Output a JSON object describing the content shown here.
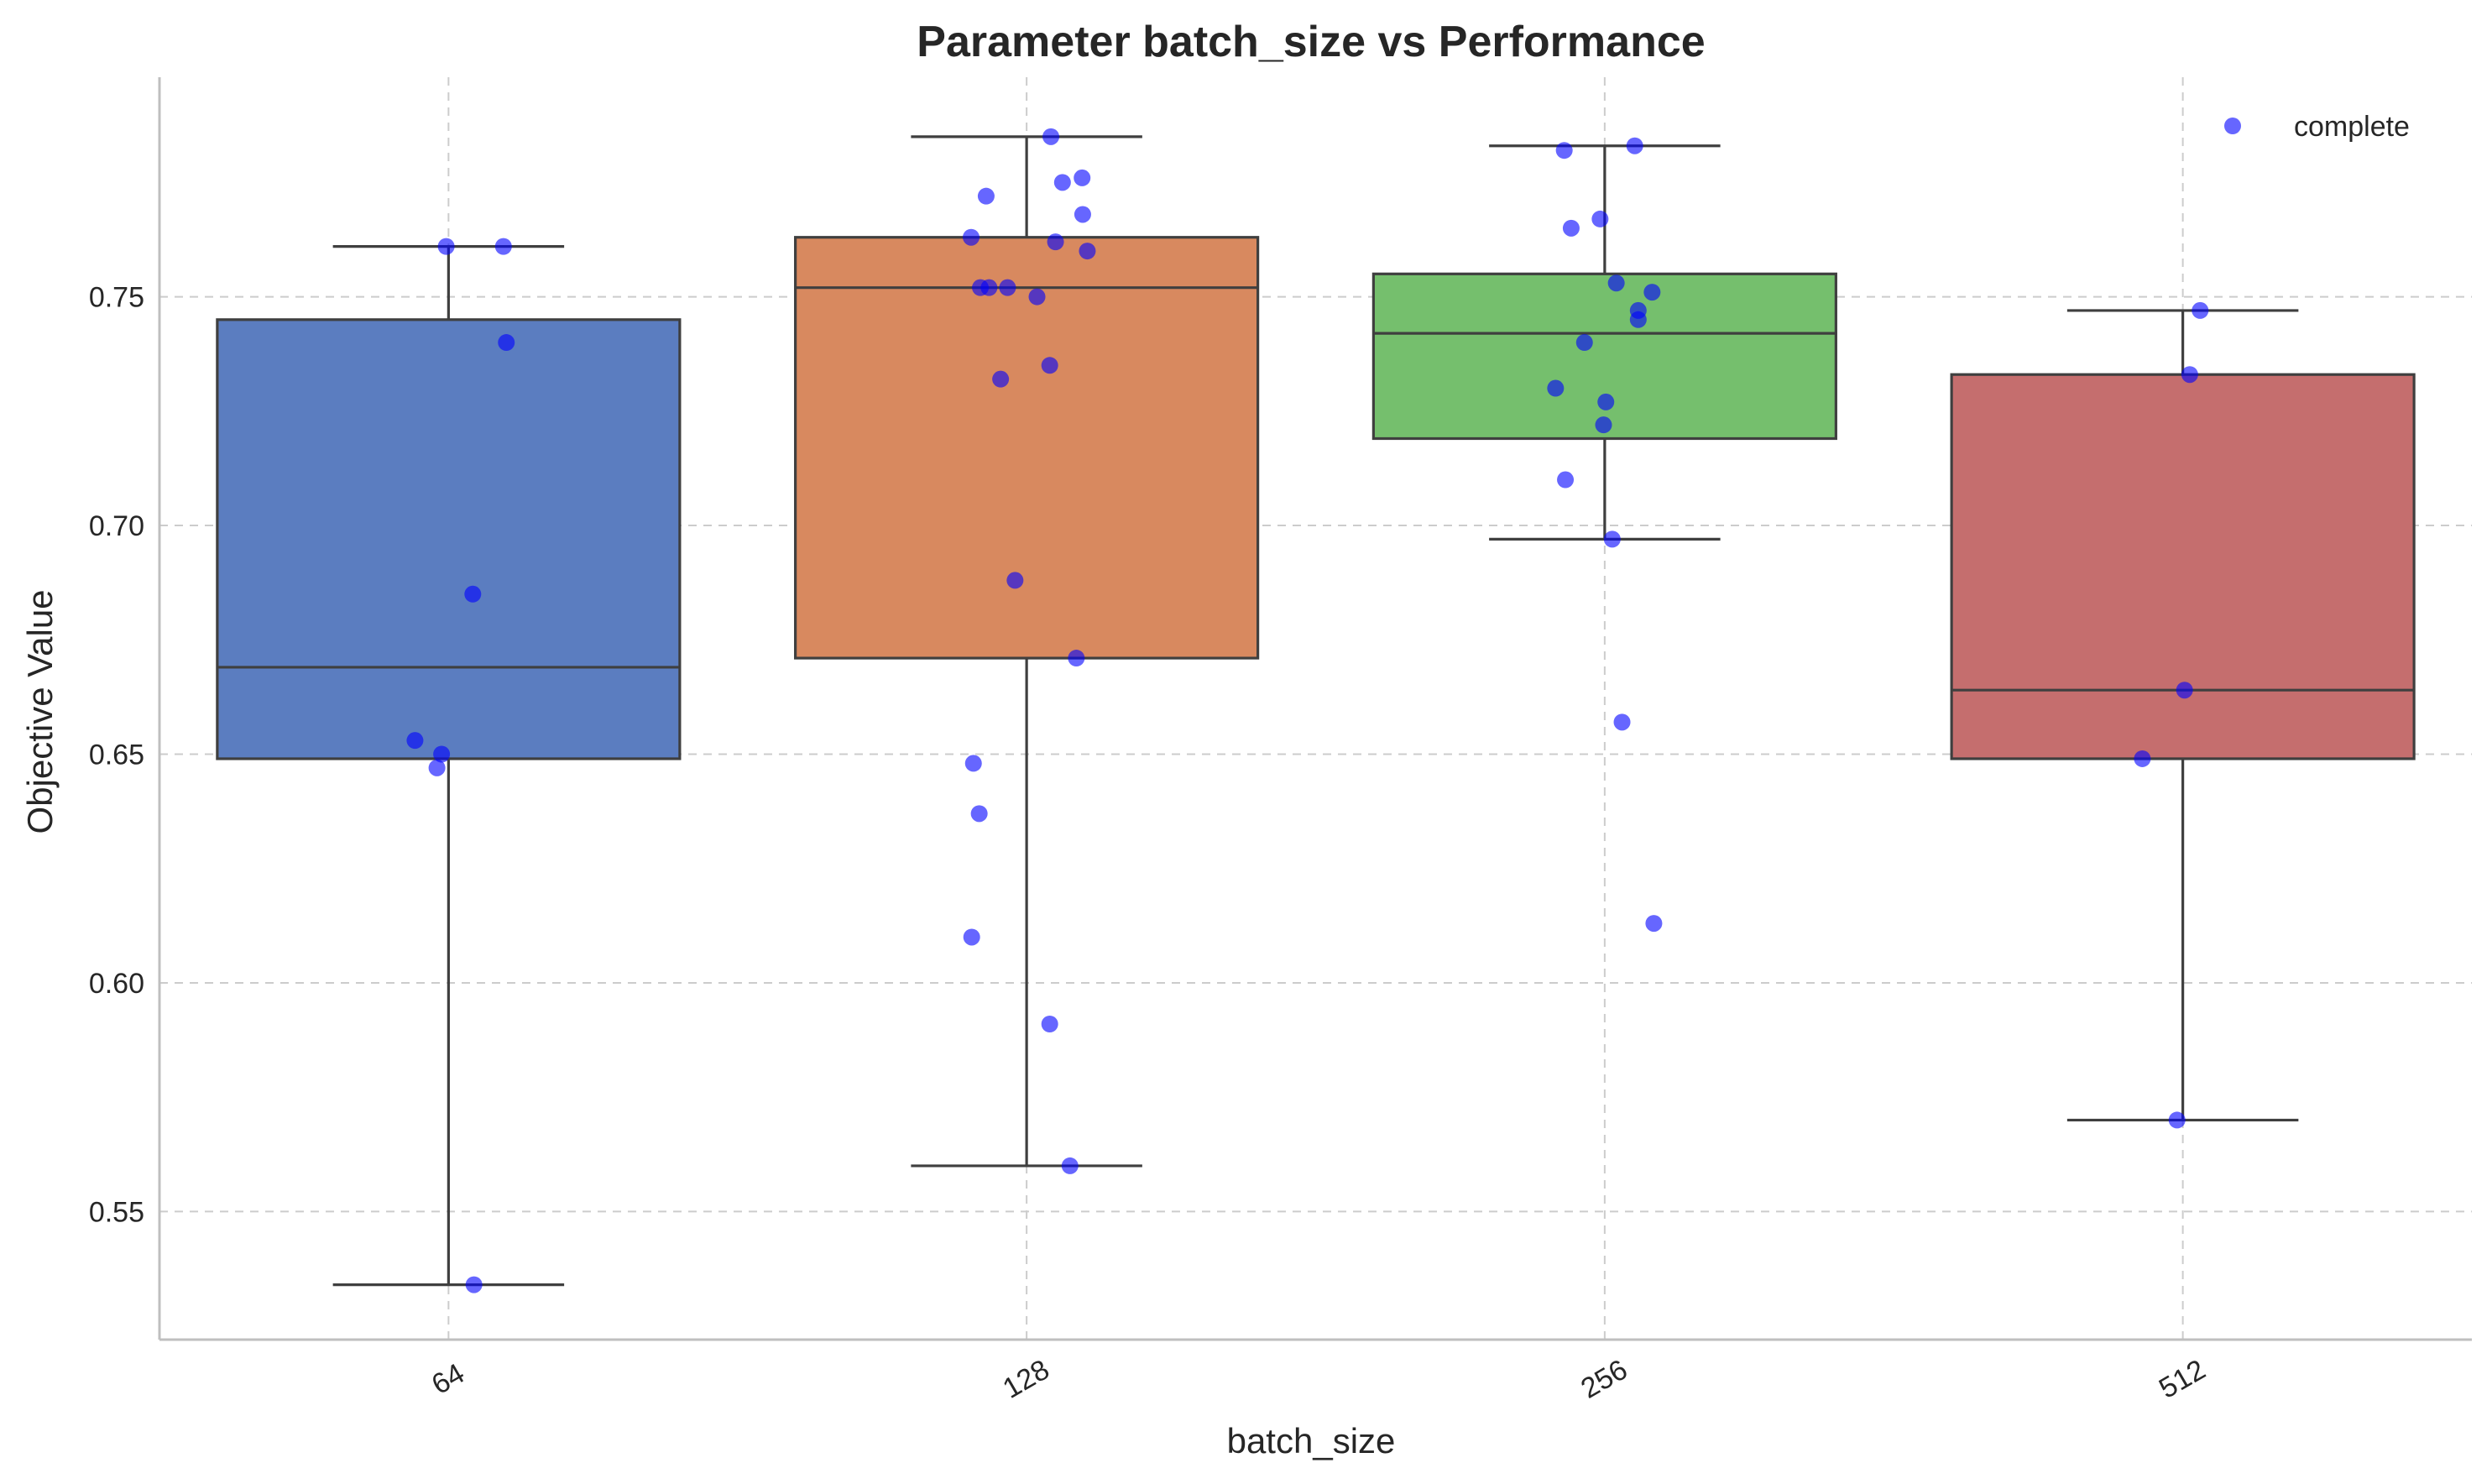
{
  "chart_data": {
    "type": "box",
    "title": "Parameter batch_size vs Performance",
    "xlabel": "batch_size",
    "ylabel": "Objective Value",
    "categories": [
      "64",
      "128",
      "256",
      "512"
    ],
    "ylim": [
      0.522,
      0.798
    ],
    "yticks": [
      0.55,
      0.6,
      0.65,
      0.7,
      0.75
    ],
    "ytick_labels": [
      "0.55",
      "0.60",
      "0.65",
      "0.70",
      "0.75"
    ],
    "grid": true,
    "legend_position": "top-right",
    "legend": [
      {
        "label": "complete",
        "color": "#0000ff"
      }
    ],
    "box_colors": [
      "#5b7dc0",
      "#d8895f",
      "#75bf6d",
      "#c56e6e"
    ],
    "point_color": "#0000ff",
    "boxes": [
      {
        "category": "64",
        "whisker_low": 0.534,
        "q1": 0.649,
        "median": 0.669,
        "q3": 0.745,
        "whisker_high": 0.761
      },
      {
        "category": "128",
        "whisker_low": 0.56,
        "q1": 0.671,
        "median": 0.752,
        "q3": 0.763,
        "whisker_high": 0.785
      },
      {
        "category": "256",
        "whisker_low": 0.697,
        "q1": 0.719,
        "median": 0.742,
        "q3": 0.755,
        "whisker_high": 0.783
      },
      {
        "category": "512",
        "whisker_low": 0.57,
        "q1": 0.649,
        "median": 0.664,
        "q3": 0.733,
        "whisker_high": 0.747
      }
    ],
    "points": [
      {
        "category": "64",
        "values": [
          0.761,
          0.761,
          0.74,
          0.685,
          0.653,
          0.65,
          0.647,
          0.534
        ],
        "jitter": [
          -0.004,
          0.095,
          0.1,
          0.042,
          -0.058,
          -0.012,
          -0.02,
          0.044
        ]
      },
      {
        "category": "128",
        "values": [
          0.785,
          0.776,
          0.775,
          0.772,
          0.768,
          0.763,
          0.762,
          0.76,
          0.752,
          0.752,
          0.752,
          0.75,
          0.735,
          0.732,
          0.688,
          0.671,
          0.648,
          0.637,
          0.61,
          0.591,
          0.56
        ],
        "jitter": [
          0.042,
          0.096,
          0.062,
          -0.07,
          0.097,
          -0.096,
          0.05,
          0.105,
          -0.08,
          -0.065,
          -0.033,
          0.018,
          0.04,
          -0.045,
          -0.02,
          0.086,
          -0.092,
          -0.082,
          -0.095,
          0.04,
          0.075
        ]
      },
      {
        "category": "256",
        "values": [
          0.783,
          0.782,
          0.767,
          0.765,
          0.753,
          0.751,
          0.747,
          0.745,
          0.74,
          0.73,
          0.727,
          0.722,
          0.71,
          0.697,
          0.657,
          0.613
        ],
        "jitter": [
          0.052,
          -0.07,
          -0.008,
          -0.058,
          0.02,
          0.082,
          0.058,
          0.058,
          -0.035,
          -0.085,
          0.002,
          -0.002,
          -0.068,
          0.013,
          0.03,
          0.085
        ]
      },
      {
        "category": "512",
        "values": [
          0.747,
          0.733,
          0.664,
          0.649,
          0.57
        ],
        "jitter": [
          0.03,
          0.012,
          0.003,
          -0.07,
          -0.01
        ]
      }
    ]
  }
}
